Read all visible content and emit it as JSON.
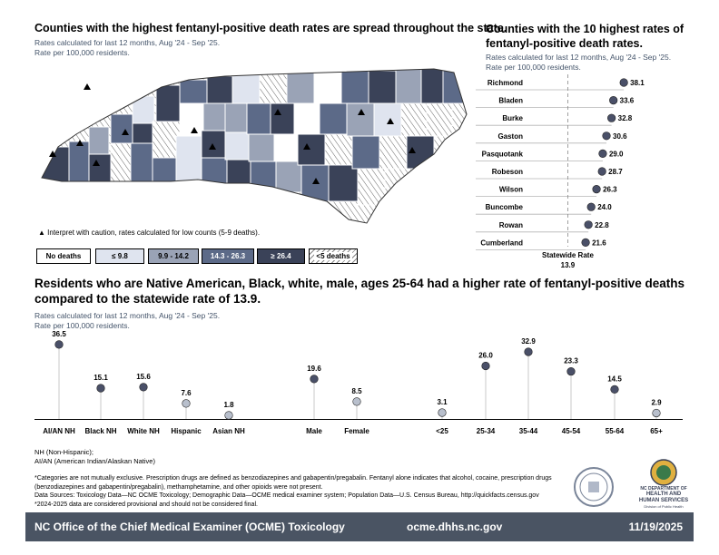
{
  "map_section": {
    "title": "Counties with the highest fentanyl-positive death rates are spread throughout the state.",
    "subtitle_1": "Rates calculated for last 12 months, Aug '24 - Sep '25.",
    "subtitle_2": "Rate per 100,000 residents.",
    "caution_note": "Interpret with caution, rates calculated for low counts (5-9 deaths).",
    "legend": [
      {
        "label": "No deaths",
        "color": "#ffffff",
        "text_color": "#000000"
      },
      {
        "label": "≤ 9.8",
        "color": "#dfe4ef",
        "text_color": "#000000"
      },
      {
        "label": "9.9 - 14.2",
        "color": "#9aa3b6",
        "text_color": "#000000"
      },
      {
        "label": "14.3 - 26.3",
        "color": "#5c6a88",
        "text_color": "#ffffff"
      },
      {
        "label": "≥ 26.4",
        "color": "#3a4258",
        "text_color": "#ffffff"
      },
      {
        "label": "<5 deaths",
        "color": "hatch",
        "text_color": "#000000"
      }
    ]
  },
  "top10_section": {
    "title_line1": "Counties with the 10 highest rates of",
    "title_line2": "fentanyl-positive death rates.",
    "subtitle_1": "Rates calculated for last 12 months, Aug '24 - Sep '25.",
    "subtitle_2": "Rate per 100,000 residents.",
    "statewide_label_1": "Statewide Rate",
    "statewide_label_2": "13.9"
  },
  "demo_section": {
    "title_line1": "Residents who are Native American, Black, white, male, ages 25-64 had a higher rate of fentanyl-positive deaths",
    "title_line2": "compared to the statewide rate of 13.9.",
    "subtitle_1": "Rates calculated for last 12 months, Aug '24 - Sep '25.",
    "subtitle_2": "Rate per 100,000 residents.",
    "abbrev_1": "NH (Non-Hispanic);",
    "abbrev_2": "AI/AN (American Indian/Alaskan Native)"
  },
  "notes": {
    "line1": "*Categories are not mutually exclusive. Prescription drugs are defined as benzodiazepines and gabapentin/pregabalin. Fentanyl alone indicates that alcohol, cocaine, prescription drugs",
    "line2": "(benzodiazepines and gabapentin/pregabalin), methamphetamine, and other opioids were not present.",
    "line3": "Data Sources: Toxicology Data—NC OCME Toxicology; Demographic Data—OCME medical examiner system; Population Data—U.S. Census Bureau, http://quickfacts.census.gov",
    "line4": "*2024-2025 data are considered provisional and should not be considered final."
  },
  "logos": {
    "dhhs_line1": "NC DEPARTMENT OF",
    "dhhs_line2": "HEALTH AND",
    "dhhs_line3": "HUMAN SERVICES",
    "dhhs_line4": "Division of Public Health"
  },
  "footer": {
    "left": "NC Office of the Chief Medical Examiner (OCME) Toxicology",
    "center": "ocme.dhhs.nc.gov",
    "right": "11/19/2025"
  },
  "chart_data": [
    {
      "type": "scatter",
      "orientation": "horizontal",
      "title": "Counties with the 10 highest rates of fentanyl-positive death rates.",
      "categories": [
        "Richmond",
        "Bladen",
        "Burke",
        "Gaston",
        "Pasquotank",
        "Robeson",
        "Wilson",
        "Buncombe",
        "Rowan",
        "Cumberland"
      ],
      "values": [
        38.1,
        33.6,
        32.8,
        30.6,
        29.0,
        28.7,
        26.3,
        24.0,
        22.8,
        21.6
      ],
      "reference_line": {
        "label": "Statewide Rate",
        "value": 13.9
      },
      "xlim": [
        0,
        40
      ]
    },
    {
      "type": "scatter",
      "title": "Residents who are Native American, Black, white, male, ages 25-64 had a higher rate of fentanyl-positive deaths compared to the statewide rate of 13.9.",
      "categories": [
        "AI/AN NH",
        "Black NH",
        "White NH",
        "Hispanic",
        "Asian NH",
        "Male",
        "Female",
        "<25",
        "25-34",
        "35-44",
        "45-54",
        "55-64",
        "65+"
      ],
      "values": [
        36.5,
        15.1,
        15.6,
        7.6,
        1.8,
        19.6,
        8.5,
        3.1,
        26.0,
        32.9,
        23.3,
        14.5,
        2.9
      ],
      "ylim": [
        0,
        40
      ]
    }
  ]
}
